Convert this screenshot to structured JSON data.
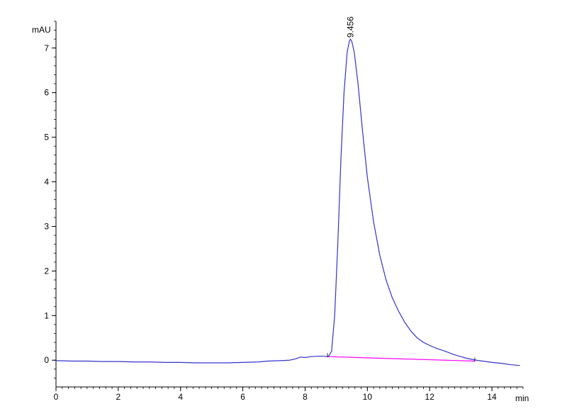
{
  "chart_data": {
    "type": "line",
    "title": "",
    "xlabel": "min",
    "ylabel": "mAU",
    "xlim": [
      0,
      15
    ],
    "ylim": [
      -0.6,
      7.6
    ],
    "x_ticks": [
      0,
      2,
      4,
      6,
      8,
      10,
      12,
      14
    ],
    "y_ticks": [
      0,
      1,
      2,
      3,
      4,
      5,
      6,
      7
    ],
    "x_minor_step": 0.2,
    "y_minor_step": 0.2,
    "grid": false,
    "line_color": "#3333cc",
    "baseline_color": "#ff00ff",
    "series": [
      {
        "x": [
          0,
          0.5,
          1,
          1.5,
          2,
          2.5,
          3,
          3.5,
          4,
          4.5,
          5,
          5.5,
          6,
          6.5,
          6.8,
          7.2,
          7.5,
          7.7,
          7.85,
          8.0,
          8.2,
          8.4,
          8.6,
          8.75,
          8.85,
          8.95,
          9.05,
          9.15,
          9.25,
          9.35,
          9.42,
          9.456,
          9.5,
          9.58,
          9.7,
          9.85,
          10.0,
          10.2,
          10.4,
          10.6,
          10.8,
          11.0,
          11.2,
          11.4,
          11.6,
          11.8,
          12.0,
          12.2,
          12.5,
          12.8,
          13.0,
          13.2,
          13.5,
          13.8,
          14.0,
          14.3,
          14.6,
          14.9
        ],
        "y": [
          -0.01,
          -0.02,
          -0.02,
          -0.03,
          -0.03,
          -0.04,
          -0.04,
          -0.05,
          -0.05,
          -0.06,
          -0.06,
          -0.06,
          -0.05,
          -0.04,
          -0.02,
          -0.01,
          0.0,
          0.03,
          0.07,
          0.06,
          0.08,
          0.09,
          0.09,
          0.08,
          0.2,
          1.0,
          2.6,
          4.5,
          6.0,
          6.9,
          7.15,
          7.2,
          7.15,
          6.9,
          6.2,
          5.1,
          4.1,
          3.1,
          2.35,
          1.8,
          1.4,
          1.1,
          0.85,
          0.65,
          0.5,
          0.4,
          0.33,
          0.27,
          0.2,
          0.12,
          0.08,
          0.04,
          0.0,
          -0.03,
          -0.05,
          -0.07,
          -0.1,
          -0.12
        ]
      }
    ],
    "baseline": {
      "x": [
        8.72,
        13.45
      ],
      "y": [
        0.08,
        -0.02
      ]
    },
    "annotations": [
      {
        "text": "9.456",
        "x": 9.456,
        "y": 7.2
      }
    ]
  }
}
